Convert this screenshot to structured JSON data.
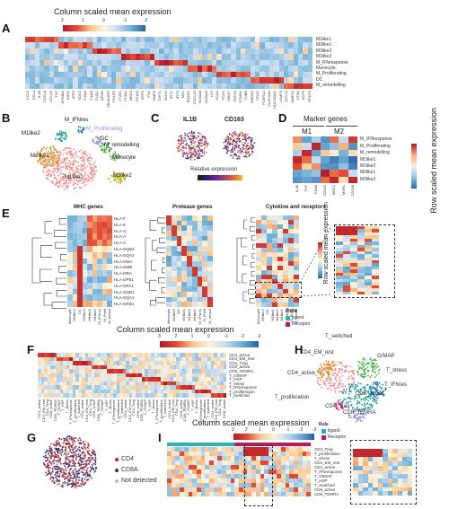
{
  "colorbar_top": {
    "title": "Column scaled mean expression",
    "ticks": [
      "2",
      "1",
      "0",
      "-1",
      "-2"
    ]
  },
  "panel_labels": [
    "A",
    "B",
    "C",
    "D",
    "E",
    "F",
    "G",
    "H",
    "I"
  ],
  "panelA": {
    "row_labels": [
      "M1like1",
      "M2like1",
      "M2like2",
      "M1like2",
      "M_IFNresponse",
      "Monocyte",
      "M_Proliferating",
      "DC",
      "M_remodelling"
    ],
    "col_labels": [
      "CCL3",
      "CCL4",
      "IL1B",
      "CXCL8",
      "CCL20",
      "TNF",
      "NFKBIA",
      "G0S2",
      "IER3",
      "SOD2",
      "C1QA",
      "C1QB",
      "C1QC",
      "APOE",
      "SELENOP",
      "FOLR2",
      "LYVE1",
      "F13A1",
      "MRC1",
      "CD163",
      "SPP1",
      "FN1",
      "MMP9",
      "CHIT1",
      "ISG15",
      "IFIT1",
      "IFIT3",
      "MX1",
      "RSAD2",
      "CXCL10",
      "S100A8",
      "S100A9",
      "LYZ",
      "VCAN",
      "FCN1",
      "MKI67",
      "TOP2A",
      "STMN1",
      "TUBB",
      "HMGB2",
      "CD1C",
      "FCER1A",
      "CLEC10A",
      "HLA-DQA1",
      "LAMP3",
      "CCL22",
      "MMP12",
      "CTSK",
      "ACP5",
      "RPLP0"
    ]
  },
  "panelB": {
    "labels": [
      "M_IFNres",
      "M1like2",
      "M_Proliferating",
      "DC",
      "M_remodelling",
      "M2like1",
      "Monocyte",
      "M1like1",
      "M2like2"
    ]
  },
  "panelC": {
    "titles": [
      "IL1B",
      "CD163"
    ],
    "legend_title": "Relative expression",
    "legend_ticks": [
      "-1",
      "0",
      "1",
      "2",
      "3"
    ]
  },
  "panelD": {
    "title": "Marker genes",
    "groups": [
      "M1",
      "M2"
    ],
    "side_title": "Row scaled mean expression",
    "rows": [
      "M_IFNresponse",
      "M_Proliferating",
      "M_remodelling",
      "M1like1",
      "M1like2",
      "M2like1",
      "M2like2"
    ],
    "cols": [
      "IL1B",
      "TNF",
      "CD80",
      "CD163",
      "MRC1",
      "MSR1",
      "CD209"
    ]
  },
  "panelE": {
    "titles": [
      "MHC genes",
      "Protease genes",
      "Cytokine and receptors"
    ],
    "mhc_rows": [
      "HLA-F",
      "HLA-E",
      "HLA-G",
      "HLA-A",
      "HLA-C",
      "HLA-DQB2",
      "HLA-DQA2",
      "HLA-DMA",
      "HLA-DMB",
      "HLA-DRA",
      "HLA-DPB1",
      "HLA-DPA1",
      "HLA-DQB1",
      "HLA-DQA1",
      "HLA-DRB1"
    ],
    "mhc_cols": [
      "Monocyte",
      "M2like2",
      "DC",
      "M2like1",
      "M1like2",
      "M1like1",
      "M_IFNres",
      "M_Prolif",
      "M_remod"
    ],
    "side_title": "Row scaled mean expression",
    "role_title": "Role",
    "role_items": [
      "ligand",
      "Receptor"
    ]
  },
  "panelF": {
    "title": "Column scaled mean expression",
    "ticks": [
      "3",
      "2",
      "1",
      "0",
      "-1",
      "-2",
      "-3"
    ],
    "rows": [
      "CD4_active",
      "CD4_EM_rest",
      "CD4_Treg",
      "CD8_active",
      "CD8_TEMRA",
      "T_GIMAP",
      "T_HSP",
      "T_stress",
      "T_IFNresponse",
      "T_proliferation",
      "T_switched"
    ]
  },
  "panelG": {
    "legend": [
      "CD4",
      "CD8A",
      "Not detected"
    ]
  },
  "panelH": {
    "labels": [
      "T_switched",
      "CD4_EM_rest",
      "G/MAP",
      "CD4_active",
      "T_stress",
      "T_IFNres",
      "CD8_active",
      "T_proliferation",
      "CD4_Treg",
      "CD8_TEMRA"
    ]
  },
  "panelI": {
    "title": "Column scaled mean expression",
    "ticks": [
      "3",
      "2",
      "1",
      "0",
      "-1",
      "-2",
      "-3"
    ],
    "role_title": "Role",
    "role_items": [
      "ligand",
      "Receptor"
    ],
    "rows": [
      "CD4_Treg",
      "T_proliferation",
      "T_stress",
      "CD4_EM_rest",
      "CD4_active",
      "T_IFNresponse",
      "T_GIMAP",
      "T_HSP",
      "T_switched",
      "CD8_active",
      "CD8_TEMRA"
    ]
  },
  "colors": {
    "red": "#b2182b",
    "orange": "#f4a582",
    "cream": "#fbf4dd",
    "lightblue": "#d1e5f0",
    "blue": "#4393c3",
    "navy": "#2166ac"
  }
}
